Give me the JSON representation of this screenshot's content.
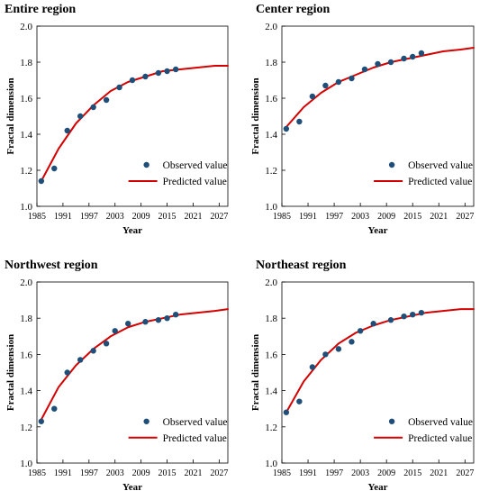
{
  "figure": {
    "panels": [
      {
        "title": "Entire region",
        "xlabel": "Year",
        "ylabel": "Fractal dimension",
        "legend": [
          "Observed value",
          "Predicted value"
        ]
      },
      {
        "title": "Center region",
        "xlabel": "Year",
        "ylabel": "Fractal dimension",
        "legend": [
          "Observed value",
          "Predicted value"
        ]
      },
      {
        "title": "Northwest region",
        "xlabel": "Year",
        "ylabel": "Fractal dimension",
        "legend": [
          "Observed value",
          "Predicted value"
        ]
      },
      {
        "title": "Northeast region",
        "xlabel": "Year",
        "ylabel": "Fractal dimension",
        "legend": [
          "Observed value",
          "Predicted value"
        ]
      }
    ]
  },
  "chart_data": [
    {
      "type": "scatter",
      "title": "Entire region",
      "xlabel": "Year",
      "ylabel": "Fractal dimension",
      "xlim": [
        1985,
        2029
      ],
      "ylim": [
        1.0,
        2.0
      ],
      "xticks": [
        "1985",
        "1991",
        "1997",
        "2003",
        "2009",
        "2015",
        "2021",
        "2027"
      ],
      "yticks": [
        "1.0",
        "1.2",
        "1.4",
        "1.6",
        "1.8",
        "2.0"
      ],
      "legend_position": "lower-right",
      "colors": {
        "observed": "#1f4e79",
        "predicted": "#d40000"
      },
      "series": [
        {
          "name": "Observed value",
          "type": "scatter",
          "x": [
            1986,
            1989,
            1992,
            1995,
            1998,
            2001,
            2004,
            2007,
            2010,
            2013,
            2015,
            2017
          ],
          "y": [
            1.14,
            1.21,
            1.42,
            1.5,
            1.55,
            1.59,
            1.66,
            1.7,
            1.72,
            1.74,
            1.75,
            1.76
          ]
        },
        {
          "name": "Predicted value",
          "type": "line",
          "x": [
            1986,
            1990,
            1994,
            1998,
            2002,
            2006,
            2010,
            2014,
            2018,
            2022,
            2026,
            2029
          ],
          "y": [
            1.14,
            1.32,
            1.46,
            1.56,
            1.64,
            1.69,
            1.72,
            1.75,
            1.76,
            1.77,
            1.78,
            1.78
          ]
        }
      ]
    },
    {
      "type": "scatter",
      "title": "Center region",
      "xlabel": "Year",
      "ylabel": "Fractal dimension",
      "xlim": [
        1985,
        2029
      ],
      "ylim": [
        1.0,
        2.0
      ],
      "xticks": [
        "1985",
        "1991",
        "1997",
        "2003",
        "2009",
        "2015",
        "2021",
        "2027"
      ],
      "yticks": [
        "1.0",
        "1.2",
        "1.4",
        "1.6",
        "1.8",
        "2.0"
      ],
      "legend_position": "lower-right",
      "colors": {
        "observed": "#1f4e79",
        "predicted": "#d40000"
      },
      "series": [
        {
          "name": "Observed value",
          "type": "scatter",
          "x": [
            1986,
            1989,
            1992,
            1995,
            1998,
            2001,
            2004,
            2007,
            2010,
            2013,
            2015,
            2017
          ],
          "y": [
            1.43,
            1.47,
            1.61,
            1.67,
            1.69,
            1.71,
            1.76,
            1.79,
            1.8,
            1.82,
            1.83,
            1.85
          ]
        },
        {
          "name": "Predicted value",
          "type": "line",
          "x": [
            1986,
            1990,
            1994,
            1998,
            2002,
            2006,
            2010,
            2014,
            2018,
            2022,
            2026,
            2029
          ],
          "y": [
            1.44,
            1.55,
            1.63,
            1.69,
            1.73,
            1.77,
            1.8,
            1.82,
            1.84,
            1.86,
            1.87,
            1.88
          ]
        }
      ]
    },
    {
      "type": "scatter",
      "title": "Northwest region",
      "xlabel": "Year",
      "ylabel": "Fractal dimension",
      "xlim": [
        1985,
        2029
      ],
      "ylim": [
        1.0,
        2.0
      ],
      "xticks": [
        "1985",
        "1991",
        "1997",
        "2003",
        "2009",
        "2015",
        "2021",
        "2027"
      ],
      "yticks": [
        "1.0",
        "1.2",
        "1.4",
        "1.6",
        "1.8",
        "2.0"
      ],
      "legend_position": "lower-right",
      "colors": {
        "observed": "#1f4e79",
        "predicted": "#d40000"
      },
      "series": [
        {
          "name": "Observed value",
          "type": "scatter",
          "x": [
            1986,
            1989,
            1992,
            1995,
            1998,
            2001,
            2003,
            2006,
            2010,
            2013,
            2015,
            2017
          ],
          "y": [
            1.23,
            1.3,
            1.5,
            1.57,
            1.62,
            1.66,
            1.73,
            1.77,
            1.78,
            1.79,
            1.8,
            1.82
          ]
        },
        {
          "name": "Predicted value",
          "type": "line",
          "x": [
            1986,
            1990,
            1994,
            1998,
            2002,
            2006,
            2010,
            2014,
            2018,
            2022,
            2026,
            2029
          ],
          "y": [
            1.24,
            1.42,
            1.54,
            1.63,
            1.7,
            1.75,
            1.78,
            1.8,
            1.82,
            1.83,
            1.84,
            1.85
          ]
        }
      ]
    },
    {
      "type": "scatter",
      "title": "Northeast region",
      "xlabel": "Year",
      "ylabel": "Fractal dimension",
      "xlim": [
        1985,
        2029
      ],
      "ylim": [
        1.0,
        2.0
      ],
      "xticks": [
        "1985",
        "1991",
        "1997",
        "2003",
        "2009",
        "2015",
        "2021",
        "2027"
      ],
      "yticks": [
        "1.0",
        "1.2",
        "1.4",
        "1.6",
        "1.8",
        "2.0"
      ],
      "legend_position": "lower-right",
      "colors": {
        "observed": "#1f4e79",
        "predicted": "#d40000"
      },
      "series": [
        {
          "name": "Observed value",
          "type": "scatter",
          "x": [
            1986,
            1989,
            1992,
            1995,
            1998,
            2001,
            2003,
            2006,
            2010,
            2013,
            2015,
            2017
          ],
          "y": [
            1.28,
            1.34,
            1.53,
            1.6,
            1.63,
            1.67,
            1.73,
            1.77,
            1.79,
            1.81,
            1.82,
            1.83
          ]
        },
        {
          "name": "Predicted value",
          "type": "line",
          "x": [
            1986,
            1990,
            1994,
            1998,
            2002,
            2006,
            2010,
            2014,
            2018,
            2022,
            2026,
            2029
          ],
          "y": [
            1.28,
            1.45,
            1.57,
            1.66,
            1.72,
            1.76,
            1.79,
            1.81,
            1.83,
            1.84,
            1.85,
            1.85
          ]
        }
      ]
    }
  ]
}
